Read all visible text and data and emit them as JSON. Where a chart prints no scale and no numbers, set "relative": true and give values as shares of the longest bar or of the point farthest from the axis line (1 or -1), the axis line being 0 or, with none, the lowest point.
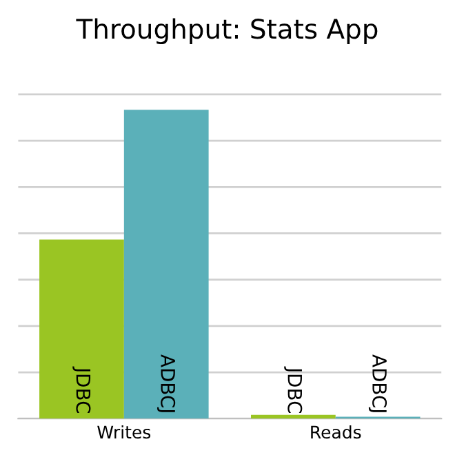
{
  "chart_data": {
    "type": "bar",
    "title": "Throughput: Stats App",
    "categories": [
      "Writes",
      "Reads"
    ],
    "relative": true,
    "grid": "y",
    "series": [
      {
        "name": "JDBC",
        "color": "#9ac523",
        "values": [
          0.58,
          0.012
        ]
      },
      {
        "name": "ADBCJ",
        "color": "#5bb0b9",
        "values": [
          1,
          0.006
        ]
      }
    ]
  }
}
